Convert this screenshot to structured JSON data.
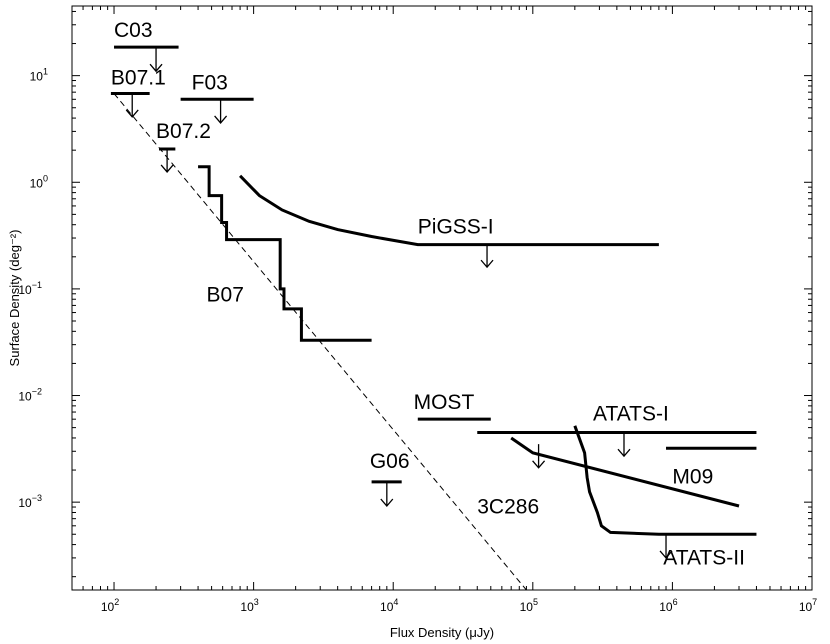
{
  "chart_data": {
    "type": "line",
    "title": "",
    "xlabel": "Flux Density (μJy)",
    "ylabel": "Surface Density (deg⁻²)",
    "xscale": "log",
    "yscale": "log",
    "xlim": [
      50,
      10000000
    ],
    "ylim": [
      0.00015,
      45
    ],
    "x_ticks": [
      {
        "value": 100,
        "base": "10",
        "exp": "2"
      },
      {
        "value": 1000,
        "base": "10",
        "exp": "3"
      },
      {
        "value": 10000,
        "base": "10",
        "exp": "4"
      },
      {
        "value": 100000,
        "base": "10",
        "exp": "5"
      },
      {
        "value": 1000000,
        "base": "10",
        "exp": "6"
      },
      {
        "value": 10000000,
        "base": "10",
        "exp": "7"
      }
    ],
    "y_ticks": [
      {
        "value": 0.001,
        "base": "10",
        "exp": "−3"
      },
      {
        "value": 0.01,
        "base": "10",
        "exp": "−2"
      },
      {
        "value": 0.1,
        "base": "10",
        "exp": "−1"
      },
      {
        "value": 1,
        "base": "10",
        "exp": "0"
      },
      {
        "value": 10,
        "base": "10",
        "exp": "1"
      }
    ],
    "series": [
      {
        "name": "B07",
        "style": "step",
        "x": [
          400,
          480,
          480,
          590,
          590,
          640,
          640,
          1550,
          1550,
          1650,
          1650,
          2200,
          2200,
          7000
        ],
        "y": [
          1.4,
          1.4,
          0.75,
          0.75,
          0.42,
          0.42,
          0.29,
          0.29,
          0.1,
          0.1,
          0.065,
          0.065,
          0.033,
          0.033
        ]
      },
      {
        "name": "PiGSS-I",
        "style": "line",
        "x": [
          800,
          1100,
          1600,
          2500,
          4000,
          7000,
          15000,
          50000,
          200000,
          800000
        ],
        "y": [
          1.15,
          0.75,
          0.55,
          0.43,
          0.36,
          0.31,
          0.26,
          0.26,
          0.26,
          0.26
        ]
      },
      {
        "name": "ATATS-I",
        "style": "line",
        "x": [
          40000,
          4000000
        ],
        "y": [
          0.0045,
          0.0045
        ]
      },
      {
        "name": "M09",
        "style": "line",
        "x": [
          900000,
          4000000
        ],
        "y": [
          0.0032,
          0.0032
        ]
      },
      {
        "name": "3C286",
        "style": "line",
        "x": [
          70000,
          100000,
          3000000
        ],
        "y": [
          0.004,
          0.0029,
          0.00092
        ]
      },
      {
        "name": "ATATS-II",
        "style": "line",
        "x": [
          200000,
          235000,
          245000,
          255000,
          290000,
          310000,
          360000,
          800000,
          4000000
        ],
        "y": [
          0.0052,
          0.0029,
          0.0017,
          0.00125,
          0.0008,
          0.0006,
          0.00052,
          0.0005,
          0.0005
        ]
      },
      {
        "name": "MOST",
        "style": "line",
        "x": [
          15000,
          50000
        ],
        "y": [
          0.006,
          0.006
        ]
      },
      {
        "name": "G06",
        "style": "line",
        "x": [
          7000,
          11500
        ],
        "y": [
          0.00155,
          0.00155
        ]
      },
      {
        "name": "C03",
        "style": "line",
        "x": [
          100,
          290
        ],
        "y": [
          18.5,
          18.5
        ]
      },
      {
        "name": "B07.1",
        "style": "line",
        "x": [
          95,
          180
        ],
        "y": [
          6.8,
          6.8
        ]
      },
      {
        "name": "F03",
        "style": "line",
        "x": [
          300,
          1000
        ],
        "y": [
          6.0,
          6.0
        ]
      },
      {
        "name": "B07.2",
        "style": "line",
        "x": [
          210,
          275
        ],
        "y": [
          2.05,
          2.05
        ]
      }
    ],
    "reference_line": {
      "name": "slope guide",
      "style": "dashed",
      "x": [
        100,
        90000
      ],
      "y": [
        6.8,
        0.00015
      ]
    },
    "upper_limit_arrows": [
      {
        "x": 200,
        "y_from": 18.5,
        "y_to": 11
      },
      {
        "x": 135,
        "y_from": 6.8,
        "y_to": 4.1
      },
      {
        "x": 580,
        "y_from": 6.0,
        "y_to": 3.6
      },
      {
        "x": 240,
        "y_from": 2.05,
        "y_to": 1.25
      },
      {
        "x": 47000,
        "y_from": 0.26,
        "y_to": 0.16
      },
      {
        "x": 450000,
        "y_from": 0.0045,
        "y_to": 0.0027
      },
      {
        "x": 110000,
        "y_from": 0.0035,
        "y_to": 0.0021
      },
      {
        "x": 900000,
        "y_from": 0.0005,
        "y_to": 0.0003
      },
      {
        "x": 9000,
        "y_from": 0.00155,
        "y_to": 0.00092
      }
    ],
    "annotations": [
      {
        "text": "C03",
        "x": 100,
        "y": 23
      },
      {
        "text": "B07.1",
        "x": 95,
        "y": 8.3
      },
      {
        "text": "F03",
        "x": 360,
        "y": 7.4
      },
      {
        "text": "B07.2",
        "x": 200,
        "y": 2.6
      },
      {
        "text": "PiGSS-I",
        "x": 15000,
        "y": 0.33
      },
      {
        "text": "B07",
        "x": 460,
        "y": 0.076
      },
      {
        "text": "MOST",
        "x": 14000,
        "y": 0.0075
      },
      {
        "text": "ATATS-I",
        "x": 270000,
        "y": 0.0058
      },
      {
        "text": "G06",
        "x": 6800,
        "y": 0.0021
      },
      {
        "text": "3C286",
        "x": 40000,
        "y": 0.00078
      },
      {
        "text": "M09",
        "x": 1000000,
        "y": 0.0015
      },
      {
        "text": "ATATS-II",
        "x": 860000,
        "y": 0.00026
      }
    ],
    "grid": false,
    "legend": "none"
  }
}
